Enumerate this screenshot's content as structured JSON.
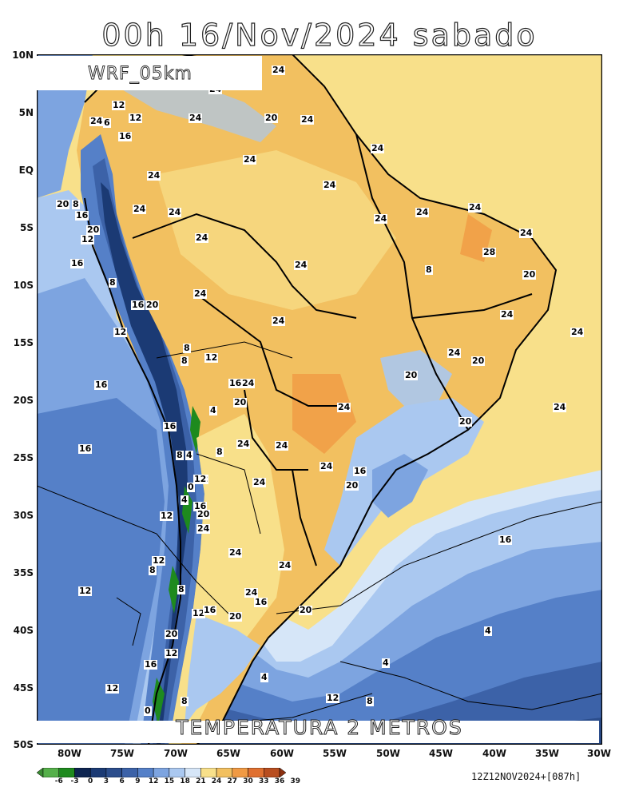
{
  "title": "00h 16/Nov/2024 sabado",
  "model": "WRF_05km",
  "field_title": "TEMPERATURA 2 METROS",
  "run_info": "12Z12NOV2024+[087h]",
  "lat_labels": [
    "10N",
    "5N",
    "EQ",
    "5S",
    "10S",
    "15S",
    "20S",
    "25S",
    "30S",
    "35S",
    "40S",
    "45S",
    "50S"
  ],
  "lon_labels": [
    "80W",
    "75W",
    "70W",
    "65W",
    "60W",
    "55W",
    "50W",
    "45W",
    "40W",
    "35W",
    "30W"
  ],
  "colorbar": {
    "ticks": [
      "-6",
      "-3",
      "0",
      "3",
      "6",
      "9",
      "12",
      "15",
      "18",
      "21",
      "24",
      "27",
      "30",
      "33",
      "36",
      "39"
    ],
    "colors": [
      "#3a8a32",
      "#55b04a",
      "#1e8a1e",
      "#0d2450",
      "#1b3a74",
      "#2b4d8c",
      "#3c62a8",
      "#5580c8",
      "#7da4e0",
      "#aac8f0",
      "#d6e6f8",
      "#f8e08a",
      "#f2c060",
      "#f09a44",
      "#e07030",
      "#b84e20",
      "#8c3010"
    ]
  },
  "contour_labels": [
    "24",
    "24",
    "12",
    "24",
    "6",
    "12",
    "16",
    "24",
    "20",
    "24",
    "24",
    "24",
    "24",
    "24",
    "24",
    "20",
    "8",
    "16",
    "24",
    "24",
    "20",
    "12",
    "24",
    "24",
    "24",
    "28",
    "16",
    "24",
    "24",
    "8",
    "20",
    "8",
    "16",
    "20",
    "24",
    "24",
    "12",
    "24",
    "8",
    "8",
    "12",
    "24",
    "24",
    "20",
    "16",
    "16",
    "24",
    "4",
    "20",
    "20",
    "24",
    "24",
    "16",
    "24",
    "16",
    "8",
    "4",
    "8",
    "20",
    "24",
    "12",
    "24",
    "16",
    "12",
    "4",
    "0",
    "16",
    "20",
    "24",
    "24",
    "20",
    "16",
    "12",
    "24",
    "12",
    "8",
    "24",
    "8",
    "24",
    "12",
    "12",
    "16",
    "16",
    "20",
    "20",
    "20",
    "4",
    "12",
    "4",
    "16",
    "4",
    "12",
    "8",
    "12",
    "8",
    "0"
  ]
}
